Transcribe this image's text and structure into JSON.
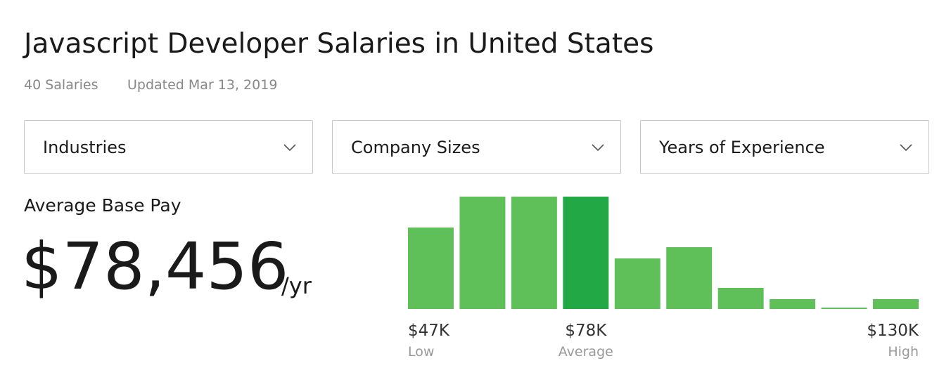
{
  "header": {
    "title": "Javascript Developer Salaries in United States",
    "count": "40 Salaries",
    "updated": "Updated Mar 13, 2019"
  },
  "filters": [
    "Industries",
    "Company Sizes",
    "Years of Experience"
  ],
  "summary": {
    "label": "Average Base Pay",
    "amount": "$78,456",
    "unit": "/yr"
  },
  "chart_data": {
    "type": "bar",
    "values": [
      116,
      160,
      160,
      160,
      72,
      88,
      30,
      14,
      2,
      14
    ],
    "color": "#5fbf58",
    "highlight_color": "#22a844",
    "highlight_index": 3,
    "markers": [
      {
        "value": "$47K",
        "label": "Low"
      },
      {
        "value": "$78K",
        "label": "Average"
      },
      {
        "value": "$130K",
        "label": "High"
      }
    ]
  }
}
